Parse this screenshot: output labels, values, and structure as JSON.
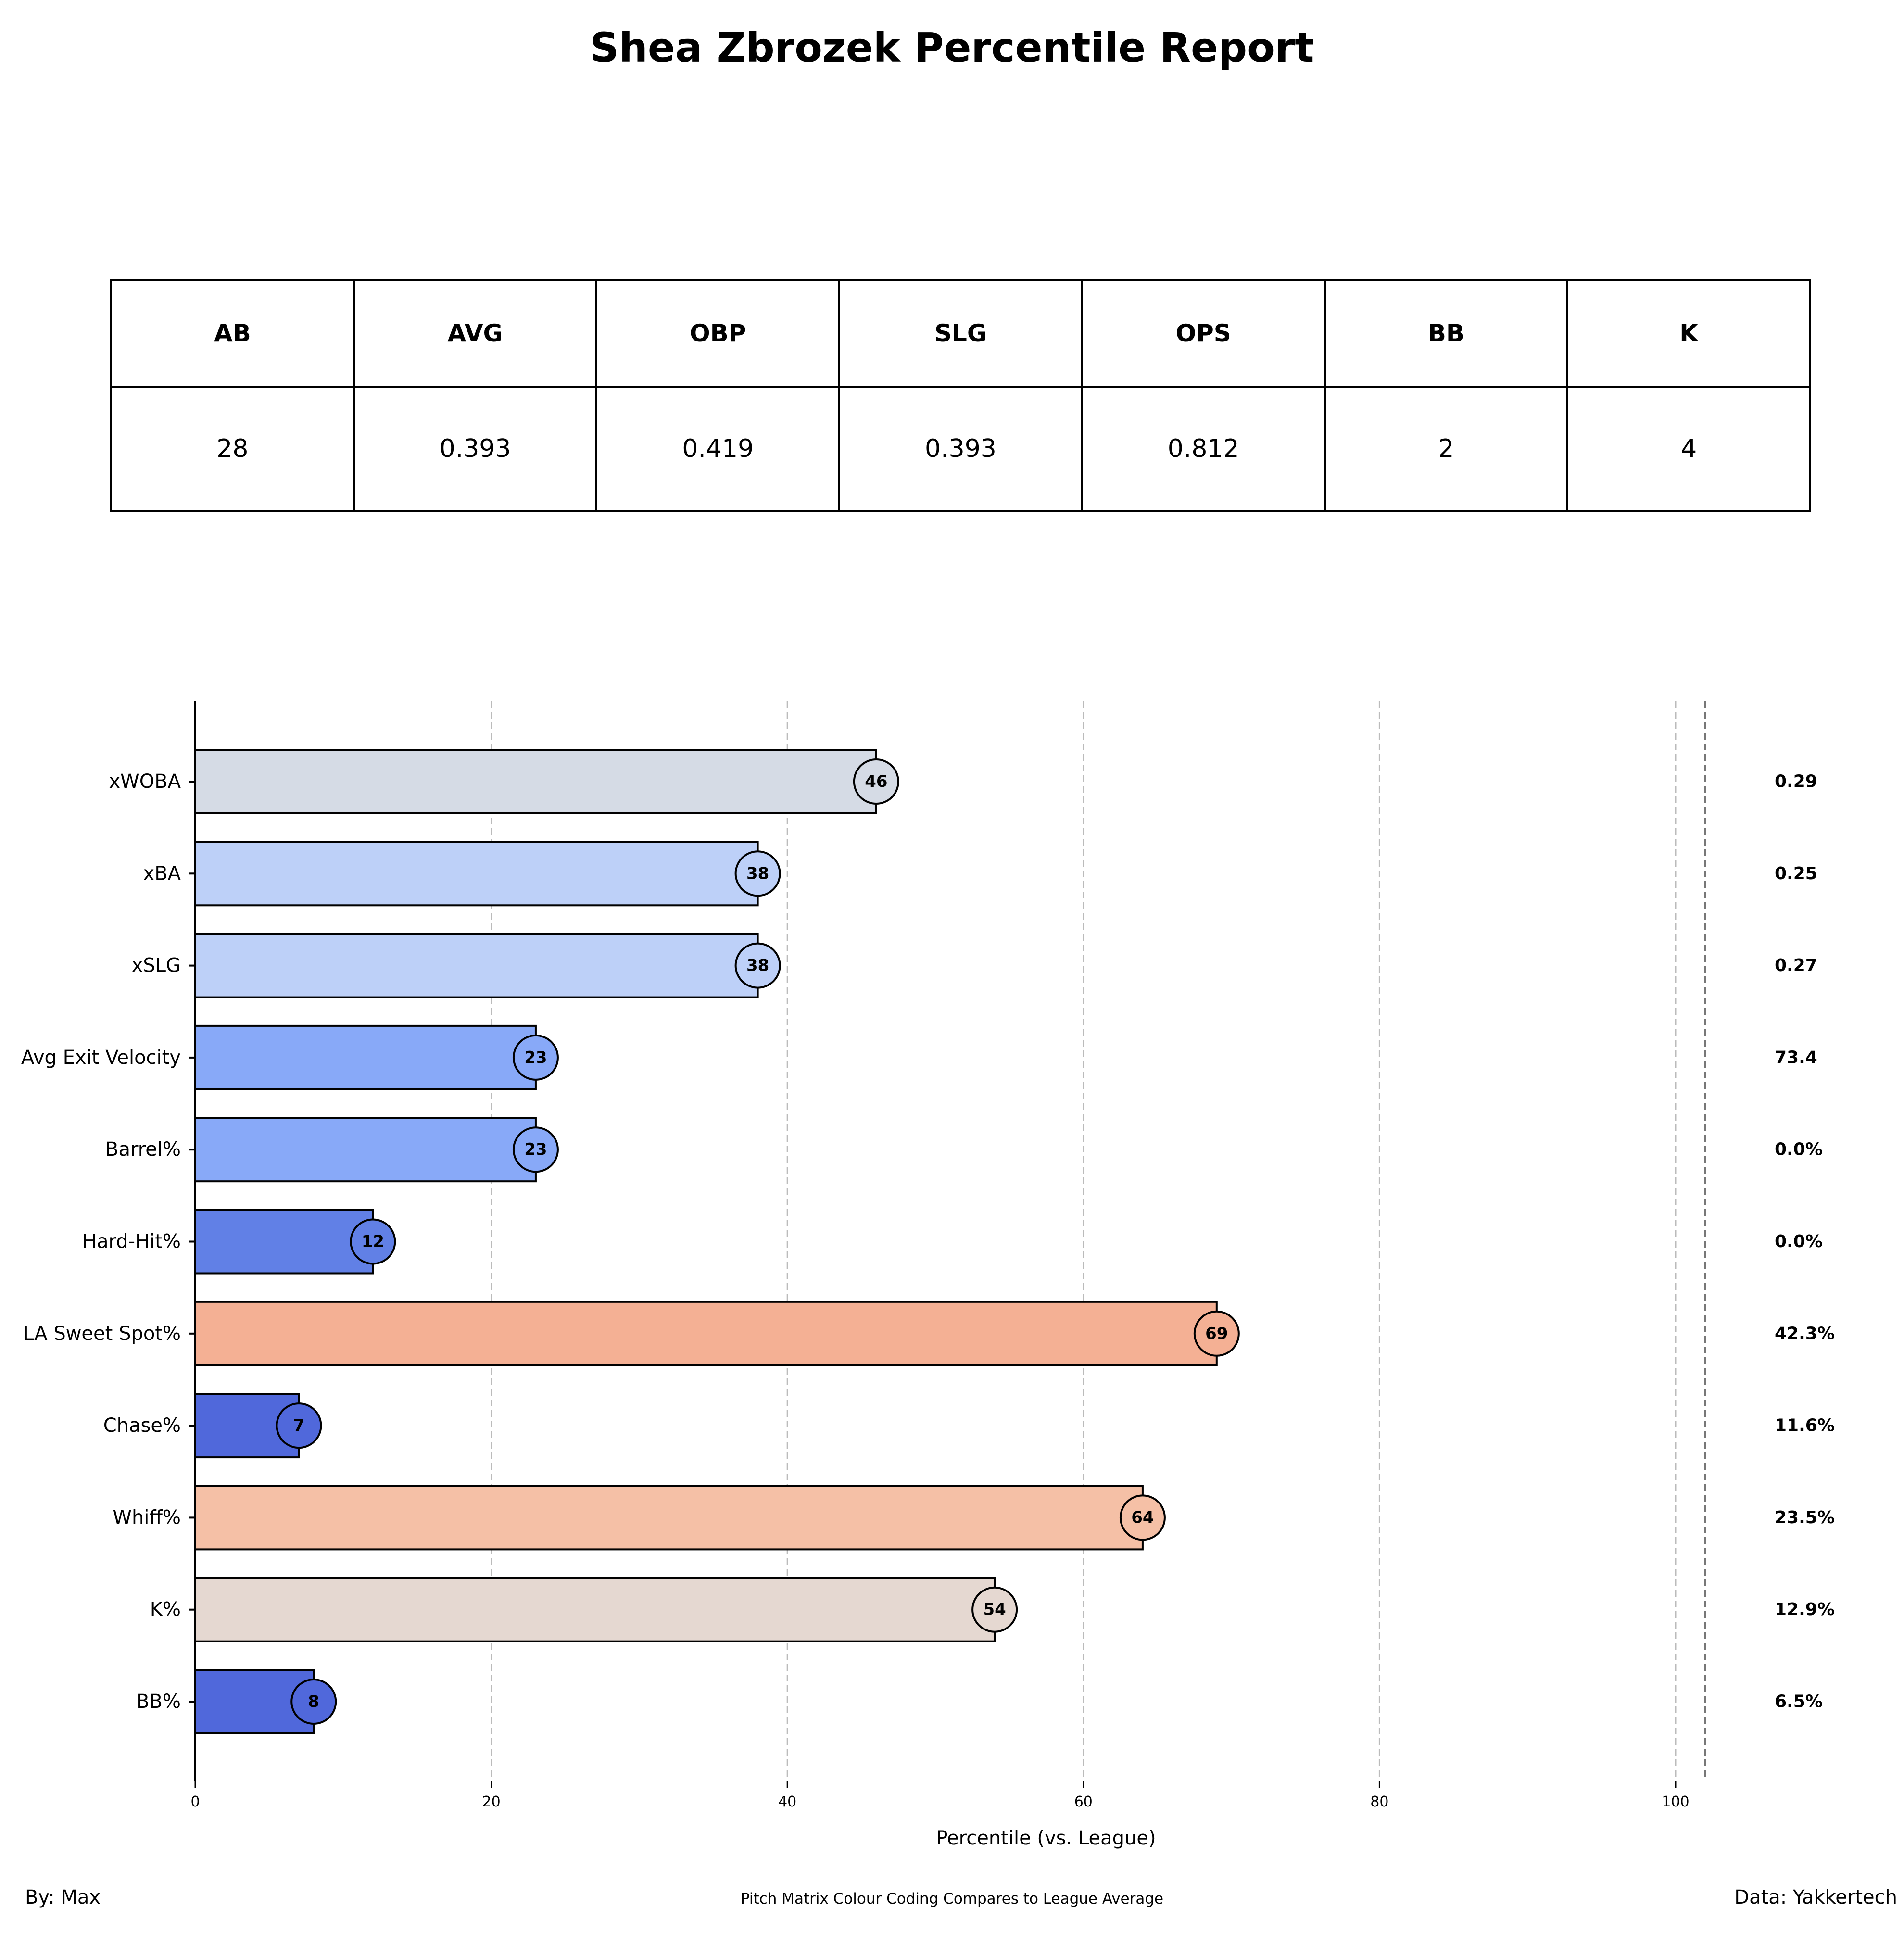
{
  "title": "Shea Zbrozek Percentile Report",
  "stats_table": {
    "headers": [
      "AB",
      "AVG",
      "OBP",
      "SLG",
      "OPS",
      "BB",
      "K"
    ],
    "values": [
      "28",
      "0.393",
      "0.419",
      "0.393",
      "0.812",
      "2",
      "4"
    ]
  },
  "chart_data": {
    "type": "bar",
    "orientation": "horizontal",
    "categories": [
      "xWOBA",
      "xBA",
      "xSLG",
      "Avg Exit Velocity",
      "Barrel%",
      "Hard-Hit%",
      "LA Sweet Spot%",
      "Chase%",
      "Whiff%",
      "K%",
      "BB%"
    ],
    "values": [
      46,
      38,
      38,
      23,
      23,
      12,
      69,
      7,
      64,
      54,
      8
    ],
    "raw_values": [
      "0.29",
      "0.25",
      "0.27",
      "73.4",
      "0.0%",
      "0.0%",
      "42.3%",
      "11.6%",
      "23.5%",
      "12.9%",
      "6.5%"
    ],
    "colors": [
      "#d5dbe5",
      "#bdd0f8",
      "#bdd0f8",
      "#88a9f8",
      "#88a9f8",
      "#6180e6",
      "#f4b094",
      "#5068db",
      "#f5c0a6",
      "#e5d8d1",
      "#5068db"
    ],
    "xlabel": "Percentile (vs. League)",
    "ylabel": "",
    "xlim": [
      0,
      106
    ],
    "xticks": [
      0,
      20,
      40,
      60,
      80,
      100
    ],
    "grid": "vertical dashed"
  },
  "footer": {
    "left": "By: Max",
    "center": "Pitch Matrix Colour Coding Compares to League Average",
    "right": "Data: Yakkertech"
  }
}
